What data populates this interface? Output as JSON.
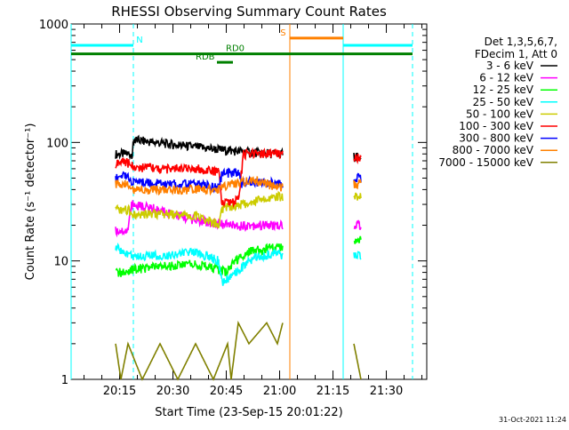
{
  "chart_data": {
    "type": "line",
    "title": "RHESSI Observing Summary Count Rates",
    "xlabel": "Start Time (23-Sep-15 20:01:22)",
    "ylabel": "Count Rate (s⁻¹ detector⁻¹)",
    "y_scale": "log",
    "ylim": [
      1,
      1000
    ],
    "xlim_minutes_from_start": [
      0,
      100
    ],
    "x_ticks": [
      {
        "label": "20:15",
        "minute": 13.63
      },
      {
        "label": "20:30",
        "minute": 28.63
      },
      {
        "label": "20:45",
        "minute": 43.63
      },
      {
        "label": "21:00",
        "minute": 58.63
      },
      {
        "label": "21:15",
        "minute": 73.63
      },
      {
        "label": "21:30",
        "minute": 88.63
      }
    ],
    "y_ticks": [
      {
        "label": "1",
        "value": 1
      },
      {
        "label": "10",
        "value": 10
      },
      {
        "label": "100",
        "value": 100
      },
      {
        "label": "1000",
        "value": 1000
      }
    ],
    "legend": {
      "header": [
        "Det 1,3,5,6,7,",
        "FDecim 1, Att 0"
      ],
      "placement": "right"
    },
    "series": [
      {
        "name": "3 - 6 keV",
        "color": "#000000",
        "points": [
          [
            12.5,
            80
          ],
          [
            17.2,
            80
          ],
          [
            17.6,
            105
          ],
          [
            30,
            95
          ],
          [
            45,
            85
          ],
          [
            58,
            80
          ],
          [
            59.5,
            80
          ]
        ],
        "points2": [
          [
            79.5,
            75
          ],
          [
            81.5,
            75
          ]
        ]
      },
      {
        "name": "6 - 12 keV",
        "color": "#ff00ff",
        "points": [
          [
            12.5,
            18
          ],
          [
            16,
            18
          ],
          [
            17,
            30
          ],
          [
            25,
            27
          ],
          [
            35,
            22
          ],
          [
            45,
            20
          ],
          [
            58,
            20
          ],
          [
            59.5,
            20
          ]
        ],
        "points2": [
          [
            79.5,
            20
          ],
          [
            81.5,
            20
          ]
        ]
      },
      {
        "name": "12 - 25 keV",
        "color": "#00ff00",
        "points": [
          [
            12.5,
            8
          ],
          [
            15,
            8
          ],
          [
            17.5,
            8.5
          ],
          [
            25,
            9
          ],
          [
            35,
            9.5
          ],
          [
            44,
            8
          ],
          [
            46,
            10
          ],
          [
            50,
            12
          ],
          [
            58,
            13
          ],
          [
            59.5,
            13
          ]
        ],
        "points2": [
          [
            79.5,
            15
          ],
          [
            81.5,
            15
          ]
        ]
      },
      {
        "name": "25 - 50 keV",
        "color": "#00ffff",
        "points": [
          [
            12.5,
            13
          ],
          [
            15,
            12
          ],
          [
            17.5,
            11
          ],
          [
            25,
            11
          ],
          [
            35,
            12
          ],
          [
            41.5,
            10
          ],
          [
            42.5,
            6.5
          ],
          [
            45,
            7.5
          ],
          [
            48,
            9
          ],
          [
            52,
            11
          ],
          [
            58,
            11.5
          ],
          [
            59.5,
            11
          ]
        ],
        "points2": [
          [
            79.5,
            11
          ],
          [
            81.5,
            11
          ]
        ]
      },
      {
        "name": "50 - 100 keV",
        "color": "#cccc00",
        "points": [
          [
            12.5,
            27
          ],
          [
            16,
            27
          ],
          [
            17.5,
            25
          ],
          [
            25,
            25
          ],
          [
            35,
            24
          ],
          [
            41.5,
            20
          ],
          [
            42.5,
            28
          ],
          [
            50,
            31
          ],
          [
            58,
            35
          ],
          [
            59.5,
            35
          ]
        ],
        "points2": [
          [
            79.5,
            35
          ],
          [
            81.5,
            35
          ]
        ]
      },
      {
        "name": "100 - 300 keV",
        "color": "#ff0000",
        "points": [
          [
            12.5,
            65
          ],
          [
            15,
            70
          ],
          [
            17.5,
            62
          ],
          [
            25,
            60
          ],
          [
            35,
            60
          ],
          [
            41.5,
            57
          ],
          [
            42.5,
            30
          ],
          [
            47,
            33
          ],
          [
            48.5,
            80
          ],
          [
            58,
            80
          ],
          [
            59.5,
            80
          ]
        ],
        "points2": [
          [
            79.5,
            75
          ],
          [
            81.5,
            75
          ]
        ]
      },
      {
        "name": "300 - 800 keV",
        "color": "#0000ff",
        "points": [
          [
            12.5,
            50
          ],
          [
            15,
            52
          ],
          [
            17.5,
            47
          ],
          [
            25,
            45
          ],
          [
            35,
            44
          ],
          [
            41.5,
            42
          ],
          [
            42.5,
            55
          ],
          [
            47,
            55
          ],
          [
            48,
            45
          ],
          [
            52,
            47
          ],
          [
            58,
            45
          ],
          [
            59.5,
            45
          ]
        ],
        "points2": [
          [
            79.5,
            50
          ],
          [
            81.5,
            50
          ]
        ]
      },
      {
        "name": "800 - 7000 keV",
        "color": "#ff8000",
        "points": [
          [
            12.5,
            45
          ],
          [
            15,
            45
          ],
          [
            17.5,
            40
          ],
          [
            25,
            40
          ],
          [
            35,
            40
          ],
          [
            41.5,
            40
          ],
          [
            45,
            45
          ],
          [
            52,
            48
          ],
          [
            58,
            42
          ],
          [
            59.5,
            42
          ]
        ],
        "points2": [
          [
            79.5,
            45
          ],
          [
            81.5,
            45
          ]
        ]
      },
      {
        "name": "7000 - 15000 keV",
        "color": "#808000",
        "points": [
          [
            12.5,
            2
          ],
          [
            14,
            1
          ],
          [
            16,
            2
          ],
          [
            20,
            1
          ],
          [
            25,
            2
          ],
          [
            30,
            1
          ],
          [
            35,
            2
          ],
          [
            40,
            1
          ],
          [
            44,
            2
          ],
          [
            45,
            1
          ],
          [
            47,
            3
          ],
          [
            50,
            2
          ],
          [
            55,
            3
          ],
          [
            58,
            2
          ],
          [
            59.5,
            3
          ]
        ],
        "points2": [
          [
            79.5,
            2
          ],
          [
            81.5,
            1
          ]
        ]
      }
    ],
    "flag_bars": [
      {
        "label": "N",
        "color": "#00ffff",
        "y": 660,
        "segments": [
          [
            0,
            17.5
          ],
          [
            76.5,
            96
          ]
        ],
        "label_minute": 18.3
      },
      {
        "label": "S",
        "color": "#ff8000",
        "y": 760,
        "segments": [
          [
            61.5,
            76.5
          ]
        ],
        "label_minute": 58.8
      },
      {
        "label": "RD0",
        "color": "#008000",
        "y": 560,
        "segments": [
          [
            0,
            96
          ]
        ],
        "label_minute": 43.5
      },
      {
        "label": "RDB",
        "color": "#008000",
        "y": 475,
        "segments": [
          [
            41,
            45.5
          ]
        ],
        "label_minute": 35
      }
    ],
    "vertical_lines": [
      {
        "color": "#00ffff",
        "minute": 0,
        "style": "solid"
      },
      {
        "color": "#00ffff",
        "minute": 17.5,
        "style": "dashed"
      },
      {
        "color": "#ff8000",
        "minute": 61.5,
        "style": "solid"
      },
      {
        "color": "#00ffff",
        "minute": 76.5,
        "style": "solid"
      },
      {
        "color": "#00ffff",
        "minute": 96,
        "style": "dashed"
      }
    ],
    "timestamp": "31-Oct-2021 11:24"
  }
}
